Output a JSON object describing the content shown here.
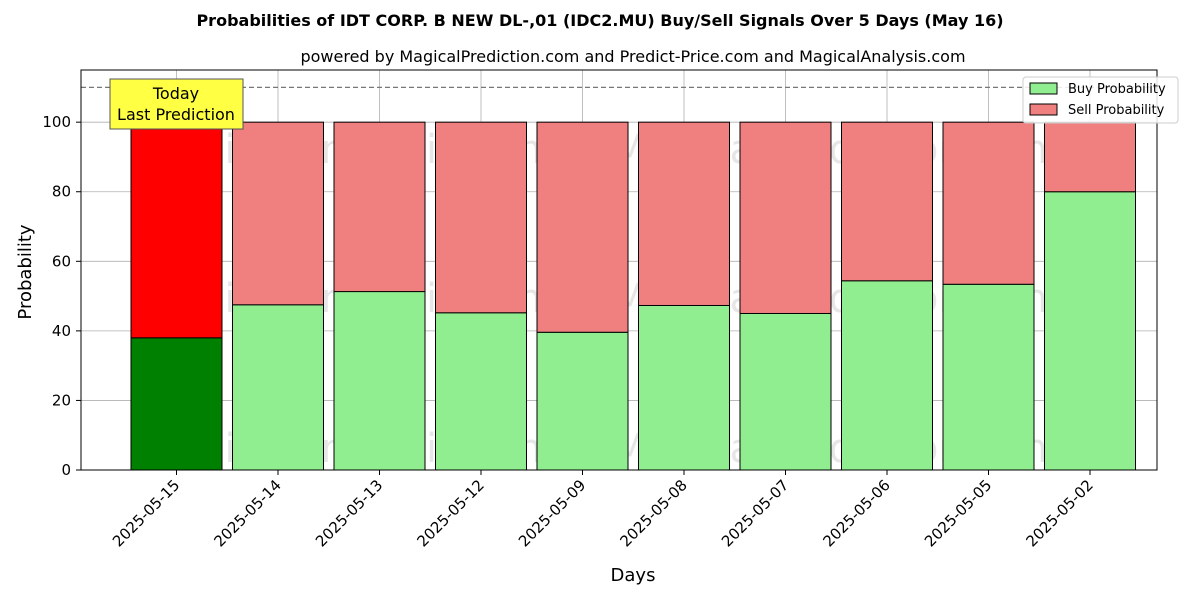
{
  "chart_data": {
    "type": "bar",
    "stacked": true,
    "title": "Probabilities of IDT CORP. B NEW  DL-,01 (IDC2.MU) Buy/Sell Signals Over 5 Days (May 16)",
    "subtitle": "powered by MagicalPrediction.com and Predict-Price.com and MagicalAnalysis.com",
    "xlabel": "Days",
    "ylabel": "Probability",
    "ylim": [
      0,
      115
    ],
    "yticks": [
      0,
      20,
      40,
      60,
      80,
      100
    ],
    "grid": true,
    "reference_line": 110,
    "legend_position": "top-right",
    "categories": [
      "2025-05-15",
      "2025-05-14",
      "2025-05-13",
      "2025-05-12",
      "2025-05-09",
      "2025-05-08",
      "2025-05-07",
      "2025-05-06",
      "2025-05-05",
      "2025-05-02"
    ],
    "series": [
      {
        "name": "Buy Probability",
        "color": "#90ee90",
        "highlight_color": "#008000",
        "values": [
          38,
          47.5,
          51.3,
          45.2,
          39.6,
          47.3,
          45,
          54.4,
          53.4,
          80
        ]
      },
      {
        "name": "Sell Probability",
        "color": "#f08080",
        "highlight_color": "#ff0000",
        "values": [
          62,
          52.5,
          48.7,
          54.8,
          60.4,
          52.7,
          55,
          45.6,
          46.6,
          20
        ]
      }
    ],
    "annotation": {
      "lines": [
        "Today",
        "Last Prediction"
      ],
      "category_index": 0,
      "color": "#ffff44"
    },
    "watermarks": [
      "MagicalAnalysis.com",
      "MagicalPrediction.com"
    ]
  }
}
